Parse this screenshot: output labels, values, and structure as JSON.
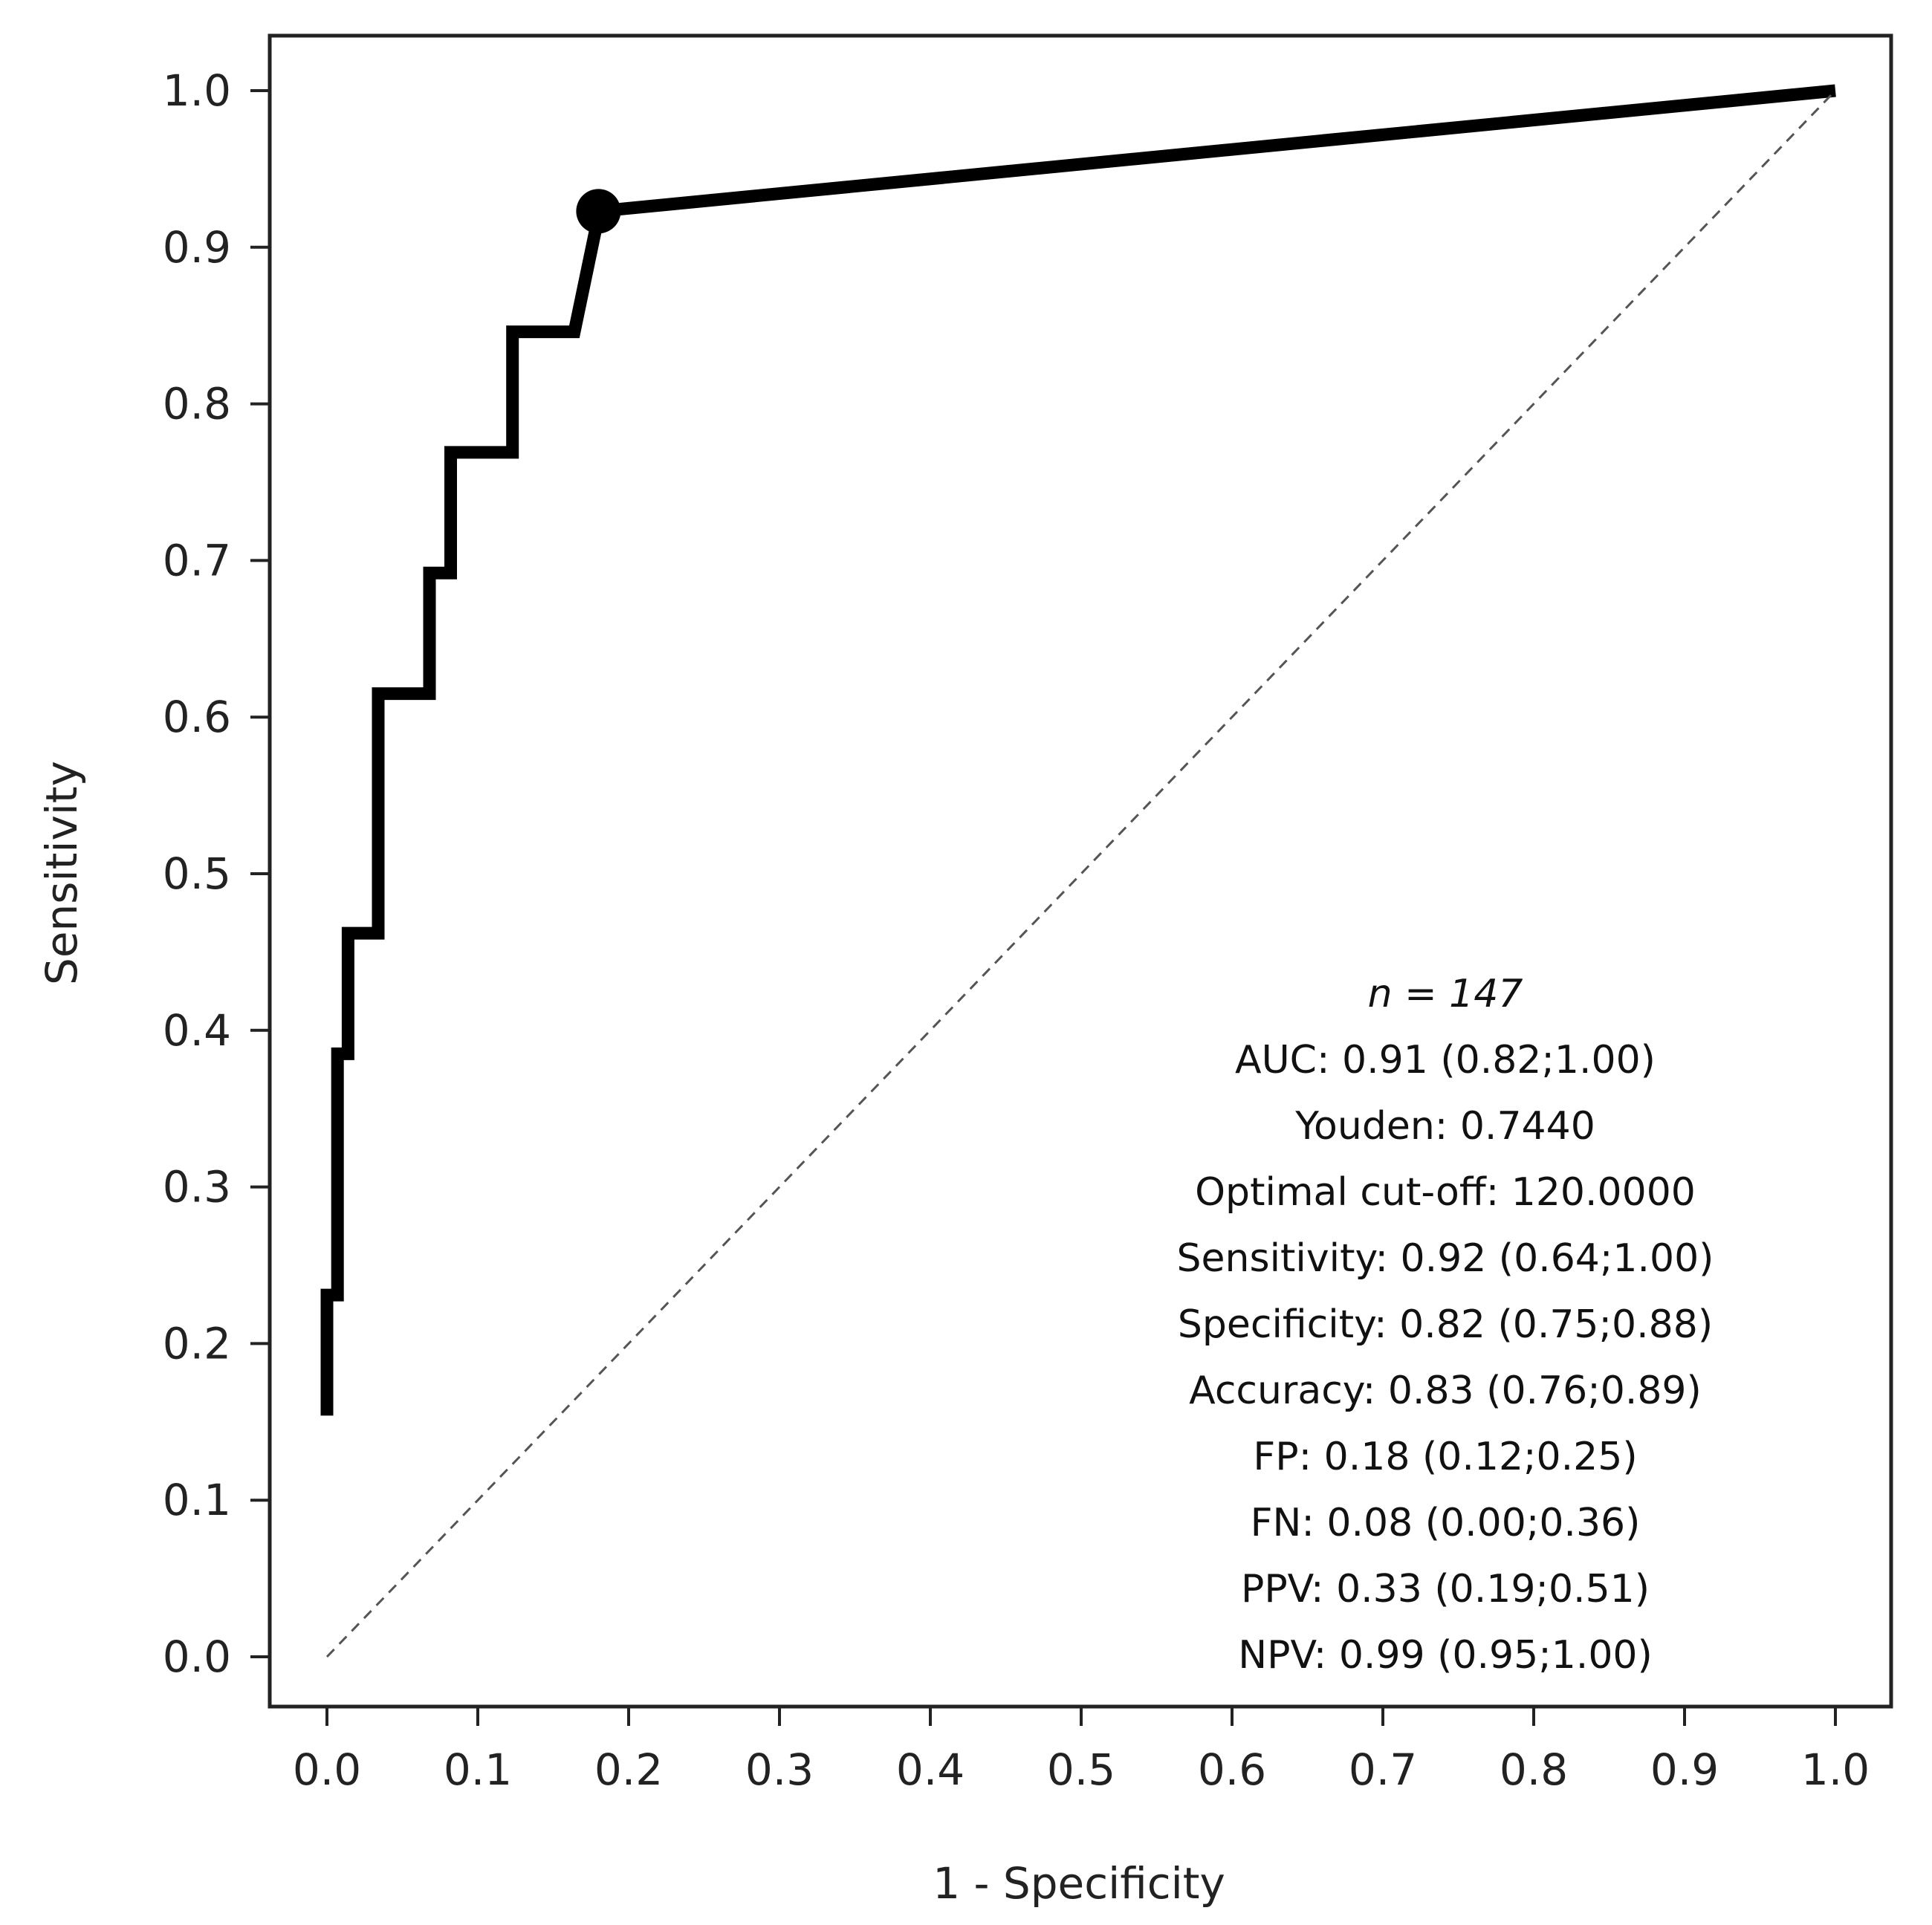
{
  "chart_data": {
    "type": "line",
    "xlabel": "1 - Specificity",
    "ylabel": "Sensitivity",
    "xlim": [
      0.0,
      1.0
    ],
    "ylim": [
      0.0,
      1.0
    ],
    "x_ticks": [
      "0.0",
      "0.1",
      "0.2",
      "0.3",
      "0.4",
      "0.5",
      "0.6",
      "0.7",
      "0.8",
      "0.9",
      "1.0"
    ],
    "y_ticks": [
      "0.0",
      "0.1",
      "0.2",
      "0.3",
      "0.4",
      "0.5",
      "0.6",
      "0.7",
      "0.8",
      "0.9",
      "1.0"
    ],
    "grid": false,
    "series": [
      {
        "name": "ROC curve",
        "style": "solid-thick",
        "color": "#000000",
        "x": [
          0.0,
          0.0,
          0.007,
          0.007,
          0.014,
          0.014,
          0.034,
          0.034,
          0.068,
          0.068,
          0.082,
          0.082,
          0.123,
          0.123,
          0.164,
          0.18,
          0.18,
          1.0
        ],
        "y": [
          0.154,
          0.231,
          0.231,
          0.385,
          0.385,
          0.462,
          0.462,
          0.615,
          0.615,
          0.692,
          0.692,
          0.769,
          0.769,
          0.846,
          0.846,
          0.92,
          0.923,
          1.0
        ]
      },
      {
        "name": "Reference line",
        "style": "dashed",
        "color": "#555555",
        "x": [
          0.0,
          1.0
        ],
        "y": [
          0.0,
          1.0
        ]
      }
    ],
    "optimal_point": {
      "x": 0.18,
      "y": 0.923
    },
    "annotation_legend_position": "bottom-right"
  },
  "stats": {
    "n": "n = 147",
    "lines": [
      "AUC: 0.91 (0.82;1.00)",
      "Youden: 0.7440",
      "Optimal cut-off: 120.0000",
      "Sensitivity: 0.92 (0.64;1.00)",
      "Specificity: 0.82 (0.75;0.88)",
      "Accuracy: 0.83 (0.76;0.89)",
      "FP: 0.18 (0.12;0.25)",
      "FN: 0.08 (0.00;0.36)",
      "PPV: 0.33 (0.19;0.51)",
      "NPV: 0.99 (0.95;1.00)"
    ]
  }
}
